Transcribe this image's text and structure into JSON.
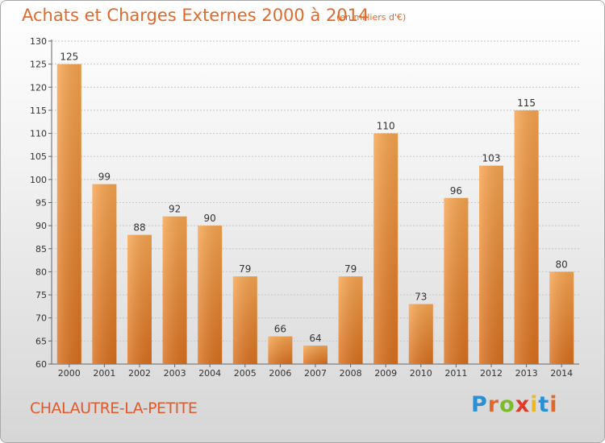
{
  "chart_data": {
    "type": "bar",
    "title": "Achats et Charges Externes 2000 à 2014",
    "unit": "(en milliers d'€)",
    "categories": [
      "2000",
      "2001",
      "2002",
      "2003",
      "2004",
      "2005",
      "2006",
      "2007",
      "2008",
      "2009",
      "2010",
      "2011",
      "2012",
      "2013",
      "2014"
    ],
    "values": [
      125,
      99,
      88,
      92,
      90,
      79,
      66,
      64,
      79,
      110,
      73,
      96,
      103,
      115,
      80
    ],
    "ylim": [
      60,
      130
    ],
    "yticks": [
      60,
      65,
      70,
      75,
      80,
      85,
      90,
      95,
      100,
      105,
      110,
      115,
      120,
      125,
      130
    ],
    "grid": true,
    "bar_color": "#f0922e",
    "title_color": "#e06a2c"
  },
  "place": "CHALAUTRE-LA-PETITE",
  "logo": {
    "text": "Proxiti",
    "letter_colors": [
      "#2b8fd6",
      "#e06a2c",
      "#7dbb2a",
      "#e03a2c",
      "#f0b81e",
      "#2b8fd6",
      "#e06a2c"
    ]
  }
}
